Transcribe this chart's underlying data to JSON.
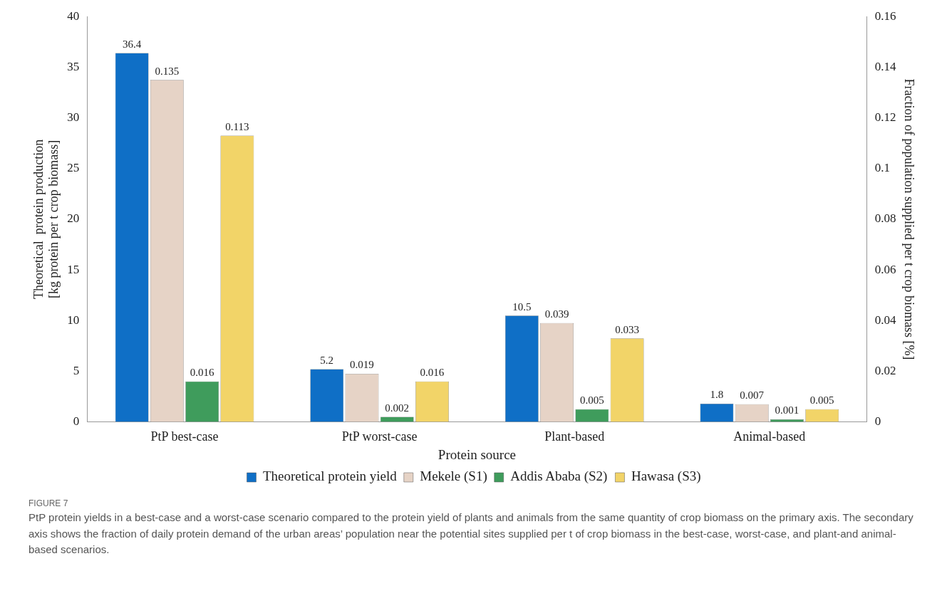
{
  "chart_data": {
    "type": "bar",
    "xlabel": "Protein source",
    "ylabel": "Theoretical  protein production\n[kg protein per t crop biomass]",
    "y2label": "Fraction of population supplied per t crop biomass [%]",
    "categories": [
      "PtP best-case",
      "PtP worst-case",
      "Plant-based",
      "Animal-based"
    ],
    "series": [
      {
        "name": "Theoretical protein yield",
        "color": "#0f6fc6",
        "values": [
          36.4,
          5.2,
          10.5,
          1.8
        ]
      },
      {
        "name": "Mekele (S1)",
        "color": "#e6d3c6",
        "axis": "y2",
        "values": [
          0.135,
          0.019,
          0.039,
          0.007
        ]
      },
      {
        "name": "Addis Ababa (S2)",
        "color": "#3f9c5c",
        "axis": "y2",
        "values": [
          0.016,
          0.002,
          0.005,
          0.001
        ]
      },
      {
        "name": "Hawasa (S3)",
        "color": "#f2d468",
        "axis": "y2",
        "values": [
          0.113,
          0.016,
          0.033,
          0.005
        ]
      }
    ],
    "ylim": [
      0,
      40
    ],
    "yticks": [
      0,
      5,
      10,
      15,
      20,
      25,
      30,
      35,
      40
    ],
    "y2lim": [
      0,
      0.16
    ],
    "y2ticks": [
      0,
      0.02,
      0.04,
      0.06,
      0.08,
      0.1,
      0.12,
      0.14,
      0.16
    ],
    "data_labels": true,
    "grid": false,
    "legend": "bottom",
    "annotations": [
      "FIGURE 7",
      "PtP protein yields in a best-case and a worst-case scenario compared to the protein yield of plants and animals from the same quantity of crop biomass on the primary axis. The secondary axis shows the fraction of daily protein demand of the urban areas’ population near the potential sites supplied per t of crop biomass in the best-case, worst-case, and plant-and animal-based scenarios."
    ]
  }
}
